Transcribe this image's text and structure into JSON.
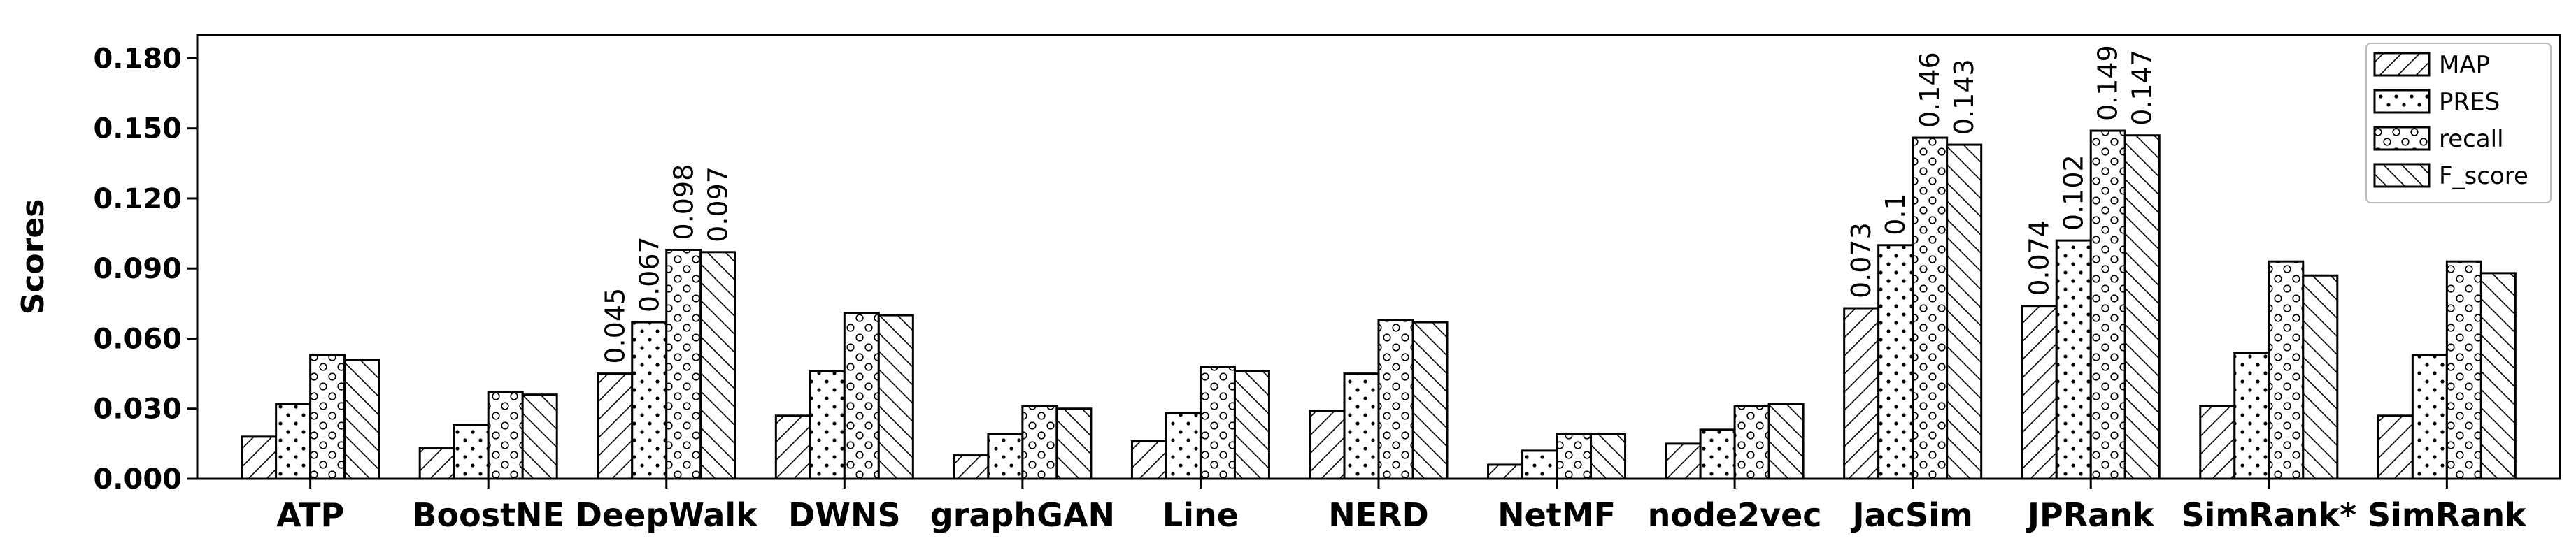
{
  "chart_data": {
    "type": "bar",
    "title": "",
    "xlabel": "",
    "ylabel": "Scores",
    "ylim": [
      0,
      0.19
    ],
    "yticks": [
      "0.000",
      "0.030",
      "0.060",
      "0.090",
      "0.120",
      "0.150",
      "0.180"
    ],
    "ytick_values": [
      0,
      0.03,
      0.06,
      0.09,
      0.12,
      0.15,
      0.18
    ],
    "grid": false,
    "legend_position": "top-right",
    "categories": [
      "ATP",
      "BoostNE",
      "DeepWalk",
      "DWNS",
      "graphGAN",
      "Line",
      "NERD",
      "NetMF",
      "node2vec",
      "JacSim",
      "JPRank",
      "SimRank*",
      "SimRank"
    ],
    "series": [
      {
        "name": "MAP",
        "pattern": "diag-forward",
        "values": [
          0.018,
          0.013,
          0.045,
          0.027,
          0.01,
          0.016,
          0.029,
          0.006,
          0.015,
          0.073,
          0.074,
          0.031,
          0.027
        ]
      },
      {
        "name": "PRES",
        "pattern": "dots",
        "values": [
          0.032,
          0.023,
          0.067,
          0.046,
          0.019,
          0.028,
          0.045,
          0.012,
          0.021,
          0.1,
          0.102,
          0.054,
          0.053
        ]
      },
      {
        "name": "recall",
        "pattern": "circles",
        "values": [
          0.053,
          0.037,
          0.098,
          0.071,
          0.031,
          0.048,
          0.068,
          0.019,
          0.031,
          0.146,
          0.149,
          0.093,
          0.093
        ]
      },
      {
        "name": "F_score",
        "pattern": "diag-back",
        "values": [
          0.051,
          0.036,
          0.097,
          0.07,
          0.03,
          0.046,
          0.067,
          0.019,
          0.032,
          0.143,
          0.147,
          0.087,
          0.088
        ]
      }
    ],
    "data_labels": [
      {
        "category": "DeepWalk",
        "series": "MAP",
        "text": "0.045"
      },
      {
        "category": "DeepWalk",
        "series": "PRES",
        "text": "0.067"
      },
      {
        "category": "DeepWalk",
        "series": "recall",
        "text": "0.098"
      },
      {
        "category": "DeepWalk",
        "series": "F_score",
        "text": "0.097"
      },
      {
        "category": "JacSim",
        "series": "MAP",
        "text": "0.073"
      },
      {
        "category": "JacSim",
        "series": "PRES",
        "text": "0.1"
      },
      {
        "category": "JacSim",
        "series": "recall",
        "text": "0.146"
      },
      {
        "category": "JacSim",
        "series": "F_score",
        "text": "0.143"
      },
      {
        "category": "JPRank",
        "series": "MAP",
        "text": "0.074"
      },
      {
        "category": "JPRank",
        "series": "PRES",
        "text": "0.102"
      },
      {
        "category": "JPRank",
        "series": "recall",
        "text": "0.149"
      },
      {
        "category": "JPRank",
        "series": "F_score",
        "text": "0.147"
      }
    ],
    "colors": {
      "bar_fill": "#ffffff",
      "bar_edge": "#000000",
      "hatch": "#000000"
    }
  }
}
